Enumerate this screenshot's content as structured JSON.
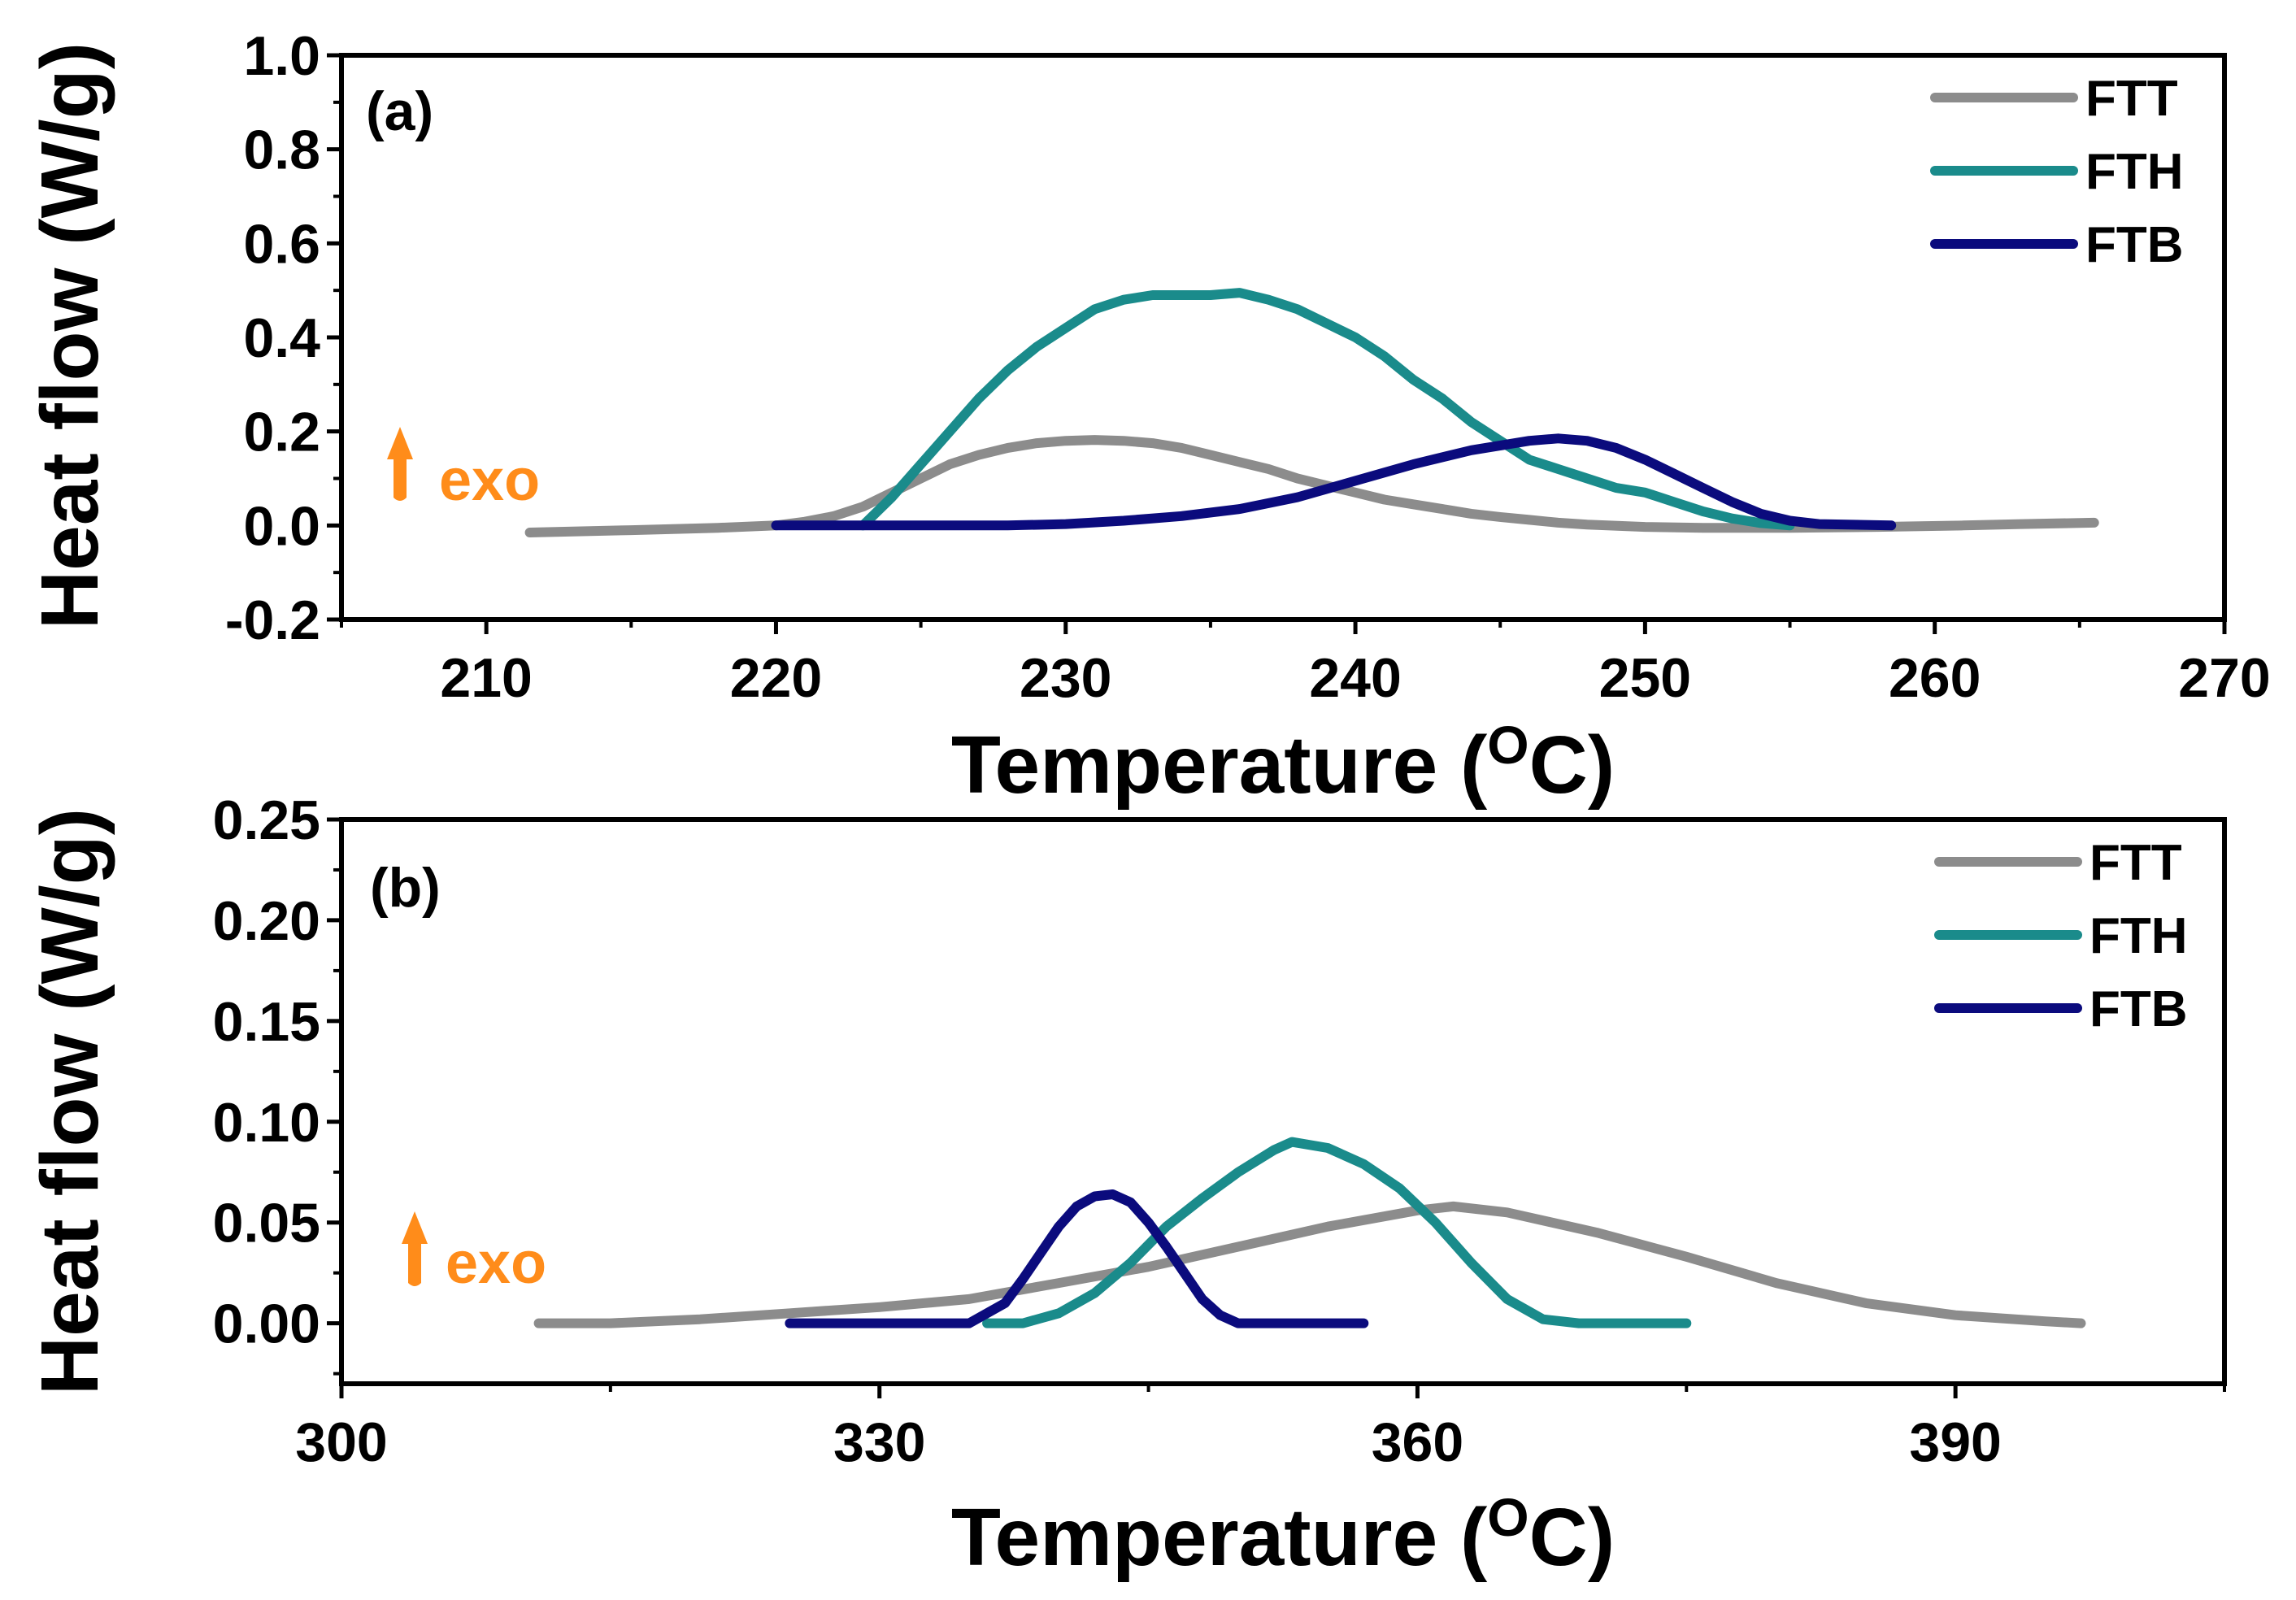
{
  "colors": {
    "FTT": "#8c8c8c",
    "FTH": "#1a8b8b",
    "FTB": "#0b0b7d",
    "exo": "#ff8c1a",
    "axis": "#000000"
  },
  "chart_data": [
    {
      "type": "line",
      "panel_label": "(a)",
      "xlabel": "Temperature (",
      "xlabel_sup": "O",
      "xlabel_suffix": "C)",
      "ylabel": "Heat flow (W/g)",
      "annotation": "exo",
      "xlim": [
        205,
        270
      ],
      "ylim": [
        -0.2,
        1.0
      ],
      "x_ticks": [
        "210",
        "220",
        "230",
        "240",
        "250",
        "260",
        "270"
      ],
      "y_ticks": [
        "-0.2",
        "0.0",
        "0.2",
        "0.4",
        "0.6",
        "0.8",
        "1.0"
      ],
      "legend": [
        "FTT",
        "FTH",
        "FTB"
      ],
      "series": [
        {
          "name": "FTT",
          "x": [
            211.5,
            215,
            218,
            220,
            221,
            222,
            223,
            224,
            225,
            226,
            227,
            228,
            229,
            230,
            231,
            232,
            233,
            234,
            235,
            236,
            237,
            238,
            239,
            240,
            241,
            242,
            243,
            244,
            245,
            246,
            247,
            248,
            250,
            252,
            255,
            258,
            261,
            263,
            265.5
          ],
          "y": [
            -0.015,
            -0.01,
            -0.005,
            0.0,
            0.008,
            0.02,
            0.04,
            0.07,
            0.1,
            0.13,
            0.15,
            0.165,
            0.175,
            0.18,
            0.182,
            0.18,
            0.175,
            0.165,
            0.15,
            0.135,
            0.12,
            0.1,
            0.085,
            0.07,
            0.055,
            0.045,
            0.035,
            0.025,
            0.018,
            0.012,
            0.006,
            0.002,
            -0.003,
            -0.005,
            -0.005,
            -0.003,
            0.0,
            0.003,
            0.006
          ]
        },
        {
          "name": "FTH",
          "x": [
            223,
            224,
            225,
            226,
            227,
            228,
            229,
            230,
            231,
            232,
            233,
            234,
            235,
            236,
            237,
            238,
            239,
            240,
            241,
            242,
            243,
            244,
            245,
            246,
            247,
            248,
            249,
            250,
            251,
            252,
            253,
            254,
            255
          ],
          "y": [
            0.0,
            0.06,
            0.13,
            0.2,
            0.27,
            0.33,
            0.38,
            0.42,
            0.46,
            0.48,
            0.49,
            0.49,
            0.49,
            0.495,
            0.48,
            0.46,
            0.43,
            0.4,
            0.36,
            0.31,
            0.27,
            0.22,
            0.18,
            0.14,
            0.12,
            0.1,
            0.08,
            0.07,
            0.05,
            0.03,
            0.015,
            0.005,
            0.0
          ]
        },
        {
          "name": "FTB",
          "x": [
            220,
            224,
            228,
            230,
            232,
            234,
            236,
            238,
            240,
            242,
            244,
            246,
            247,
            248,
            249,
            250,
            251,
            252,
            253,
            254,
            255,
            256,
            258.5
          ],
          "y": [
            0.0,
            0.0,
            0.0,
            0.003,
            0.01,
            0.02,
            0.035,
            0.06,
            0.095,
            0.13,
            0.16,
            0.18,
            0.185,
            0.18,
            0.165,
            0.14,
            0.11,
            0.08,
            0.05,
            0.025,
            0.01,
            0.003,
            0.0
          ]
        }
      ]
    },
    {
      "type": "line",
      "panel_label": "(b)",
      "xlabel": "Temperature (",
      "xlabel_sup": "O",
      "xlabel_suffix": "C)",
      "ylabel": "Heat flow (W/g)",
      "annotation": "exo",
      "xlim": [
        300,
        405
      ],
      "ylim": [
        -0.03,
        0.25
      ],
      "x_ticks": [
        "300",
        "330",
        "360",
        "390"
      ],
      "y_ticks": [
        "0.00",
        "0.05",
        "0.10",
        "0.15",
        "0.20",
        "0.25"
      ],
      "legend": [
        "FTT",
        "FTH",
        "FTB"
      ],
      "series": [
        {
          "name": "FTT",
          "x": [
            311,
            315,
            320,
            325,
            330,
            335,
            340,
            345,
            350,
            355,
            360,
            362,
            365,
            370,
            375,
            380,
            385,
            390,
            395,
            397
          ],
          "y": [
            0.0,
            0.0,
            0.002,
            0.005,
            0.008,
            0.012,
            0.02,
            0.028,
            0.038,
            0.048,
            0.056,
            0.058,
            0.055,
            0.045,
            0.033,
            0.02,
            0.01,
            0.004,
            0.001,
            0.0
          ],
          "x_note": "data units"
        },
        {
          "name": "FTH",
          "x": [
            336,
            338,
            340,
            342,
            344,
            346,
            348,
            350,
            352,
            353,
            355,
            357,
            359,
            361,
            363,
            365,
            367,
            369,
            375
          ],
          "y": [
            0.0,
            0.0,
            0.005,
            0.015,
            0.03,
            0.048,
            0.062,
            0.075,
            0.086,
            0.09,
            0.087,
            0.079,
            0.067,
            0.05,
            0.03,
            0.012,
            0.002,
            0.0,
            0.0
          ]
        },
        {
          "name": "FTB",
          "x": [
            325,
            330,
            335,
            337,
            338,
            339,
            340,
            341,
            342,
            343,
            344,
            345,
            346,
            347,
            348,
            349,
            350,
            352,
            357
          ],
          "y": [
            0.0,
            0.0,
            0.0,
            0.01,
            0.022,
            0.035,
            0.048,
            0.058,
            0.063,
            0.064,
            0.06,
            0.05,
            0.038,
            0.025,
            0.012,
            0.004,
            0.0,
            0.0,
            0.0
          ]
        }
      ]
    }
  ]
}
